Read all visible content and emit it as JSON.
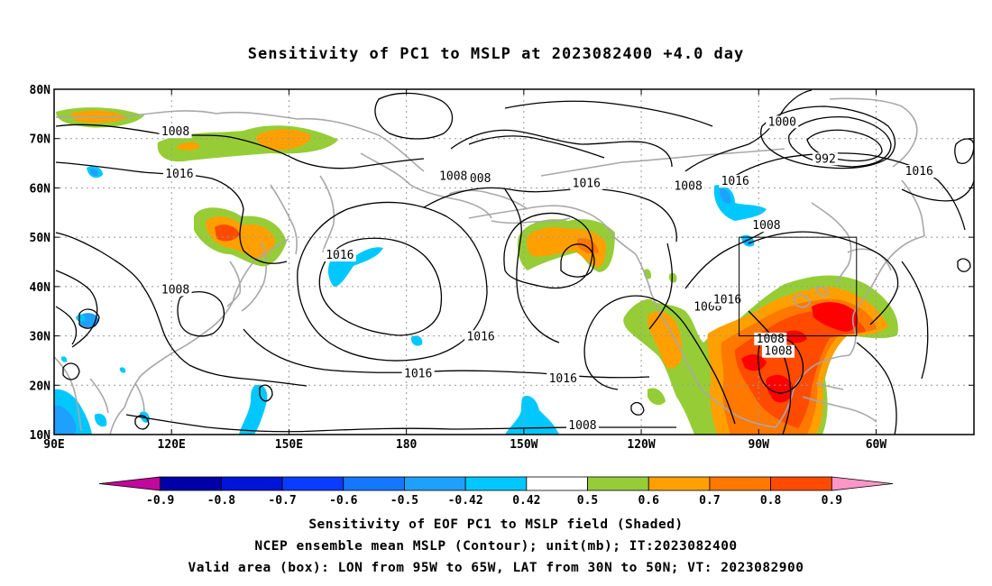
{
  "title": "Sensitivity of PC1 to MSLP at 2023082400 +4.0 day",
  "captions": [
    "Sensitivity of EOF PC1 to MSLP field (Shaded)",
    "NCEP ensemble mean MSLP (Contour); unit(mb); IT:2023082400",
    "Valid area (box): LON from 95W to 65W, LAT from 30N to 50N; VT: 2023082900"
  ],
  "map": {
    "lon_range": [
      90,
      325
    ],
    "lat_range": [
      10,
      80
    ],
    "lon_ticks": [
      {
        "lon": 90,
        "label": "90E"
      },
      {
        "lon": 120,
        "label": "120E"
      },
      {
        "lon": 150,
        "label": "150E"
      },
      {
        "lon": 180,
        "label": "180"
      },
      {
        "lon": 210,
        "label": "150W"
      },
      {
        "lon": 240,
        "label": "120W"
      },
      {
        "lon": 270,
        "label": "90W"
      },
      {
        "lon": 300,
        "label": "60W"
      }
    ],
    "lat_ticks": [
      {
        "lat": 80,
        "label": "80N"
      },
      {
        "lat": 70,
        "label": "70N"
      },
      {
        "lat": 60,
        "label": "60N"
      },
      {
        "lat": 50,
        "label": "50N"
      },
      {
        "lat": 40,
        "label": "40N"
      },
      {
        "lat": 30,
        "label": "30N"
      },
      {
        "lat": 20,
        "label": "20N"
      },
      {
        "lat": 10,
        "label": "10N"
      }
    ],
    "valid_box": {
      "lon_min": 265,
      "lon_max": 295,
      "lat_min": 30,
      "lat_max": 50
    },
    "isobar_labels": [
      {
        "lon": 121,
        "lat": 71,
        "text": "1008"
      },
      {
        "lon": 122,
        "lat": 62.5,
        "text": "1016"
      },
      {
        "lon": 121,
        "lat": 39,
        "text": "1008"
      },
      {
        "lon": 198,
        "lat": 61.5,
        "text": "1008"
      },
      {
        "lon": 192,
        "lat": 62,
        "text": "1008"
      },
      {
        "lon": 226,
        "lat": 60.5,
        "text": "1016"
      },
      {
        "lon": 252,
        "lat": 60,
        "text": "1008"
      },
      {
        "lon": 276,
        "lat": 73,
        "text": "1000"
      },
      {
        "lon": 287,
        "lat": 65.5,
        "text": "992"
      },
      {
        "lon": 264,
        "lat": 61,
        "text": "1016"
      },
      {
        "lon": 311,
        "lat": 63,
        "text": "1016"
      },
      {
        "lon": 272,
        "lat": 52,
        "text": "1008"
      },
      {
        "lon": 163,
        "lat": 46,
        "text": "1016"
      },
      {
        "lon": 199,
        "lat": 29.5,
        "text": "1016"
      },
      {
        "lon": 183,
        "lat": 22,
        "text": "1016"
      },
      {
        "lon": 220,
        "lat": 21,
        "text": "1016"
      },
      {
        "lon": 225,
        "lat": 11.5,
        "text": "1008"
      },
      {
        "lon": 257,
        "lat": 35.5,
        "text": "1008"
      },
      {
        "lon": 262,
        "lat": 37,
        "text": "1016"
      },
      {
        "lon": 273,
        "lat": 29,
        "text": "1008"
      },
      {
        "lon": 275,
        "lat": 26.5,
        "text": "1008"
      }
    ]
  },
  "colorbar": {
    "levels": [
      "-0.9",
      "-0.8",
      "-0.7",
      "-0.6",
      "-0.5",
      "-0.42",
      "0.42",
      "0.5",
      "0.6",
      "0.7",
      "0.8",
      "0.9"
    ],
    "colors": [
      "#c0089c",
      "#0000a8",
      "#0014d8",
      "#0a3cff",
      "#1478ff",
      "#1ea0ff",
      "#00c8ff",
      "#ffffff",
      "#96cd37",
      "#ffa000",
      "#ff7800",
      "#ff4b00",
      "#ff0000",
      "#ff96c8"
    ]
  },
  "colors": {
    "land": "#a8a8a8",
    "grid": "#999999",
    "isobar": "#000000",
    "green": "#96cd37",
    "orange": "#ffa000",
    "dark_orange": "#ff7800",
    "red_orange": "#ff4b00",
    "red": "#ff0000",
    "light_blue": "#1ea0ff",
    "cyan": "#00c8ff"
  }
}
